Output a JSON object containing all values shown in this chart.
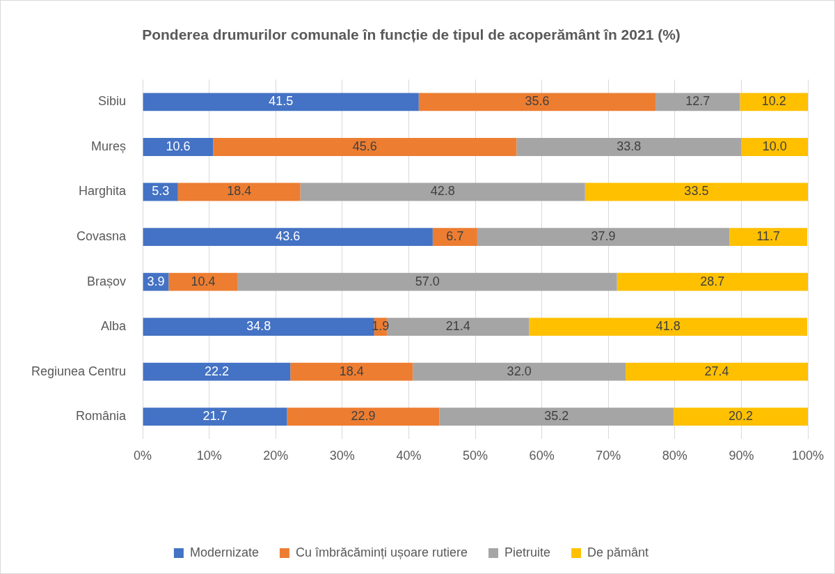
{
  "chart_data": {
    "type": "bar",
    "orientation": "horizontal",
    "stacked": true,
    "title": "Ponderea drumurilor comunale în funcție de tipul de acoperământ în 2021 (%)",
    "categories": [
      "Sibiu",
      "Mureș",
      "Harghita",
      "Covasna",
      "Brașov",
      "Alba",
      "Regiunea Centru",
      "România"
    ],
    "series": [
      {
        "name": "Modernizate",
        "color": "#4472c4",
        "values": [
          41.5,
          10.6,
          5.3,
          43.6,
          3.9,
          34.8,
          22.2,
          21.7
        ],
        "value_labels": [
          "41.5",
          "10.6",
          "5.3",
          "43.6",
          "3.9",
          "34.8",
          "22.2",
          "21.7"
        ]
      },
      {
        "name": "Cu îmbrăcăminți ușoare rutiere",
        "color": "#ed7d31",
        "values": [
          35.6,
          45.6,
          18.4,
          6.7,
          10.4,
          1.9,
          18.4,
          22.9
        ],
        "value_labels": [
          "35.6",
          "45.6",
          "18.4",
          "6.7",
          "10.4",
          "1.9",
          "18.4",
          "22.9"
        ]
      },
      {
        "name": "Pietruite",
        "color": "#a5a5a5",
        "values": [
          12.7,
          33.8,
          42.8,
          37.9,
          57.0,
          21.4,
          32.0,
          35.2
        ],
        "value_labels": [
          "12.7",
          "33.8",
          "42.8",
          "37.9",
          "57.0",
          "21.4",
          "32.0",
          "35.2"
        ]
      },
      {
        "name": "De pământ",
        "color": "#ffc000",
        "values": [
          10.2,
          10.0,
          33.5,
          11.7,
          28.7,
          41.8,
          27.4,
          20.2
        ],
        "value_labels": [
          "10.2",
          "10.0",
          "33.5",
          "11.7",
          "28.7",
          "41.8",
          "27.4",
          "20.2"
        ]
      }
    ],
    "xlim": [
      0,
      100
    ],
    "xticks": [
      {
        "value": 0,
        "label": "0%"
      },
      {
        "value": 10,
        "label": "10%"
      },
      {
        "value": 20,
        "label": "20%"
      },
      {
        "value": 30,
        "label": "30%"
      },
      {
        "value": 40,
        "label": "40%"
      },
      {
        "value": 50,
        "label": "50%"
      },
      {
        "value": 60,
        "label": "60%"
      },
      {
        "value": 70,
        "label": "70%"
      },
      {
        "value": 80,
        "label": "80%"
      },
      {
        "value": 90,
        "label": "90%"
      },
      {
        "value": 100,
        "label": "100%"
      }
    ],
    "grid": "x",
    "legend": "bottom"
  }
}
